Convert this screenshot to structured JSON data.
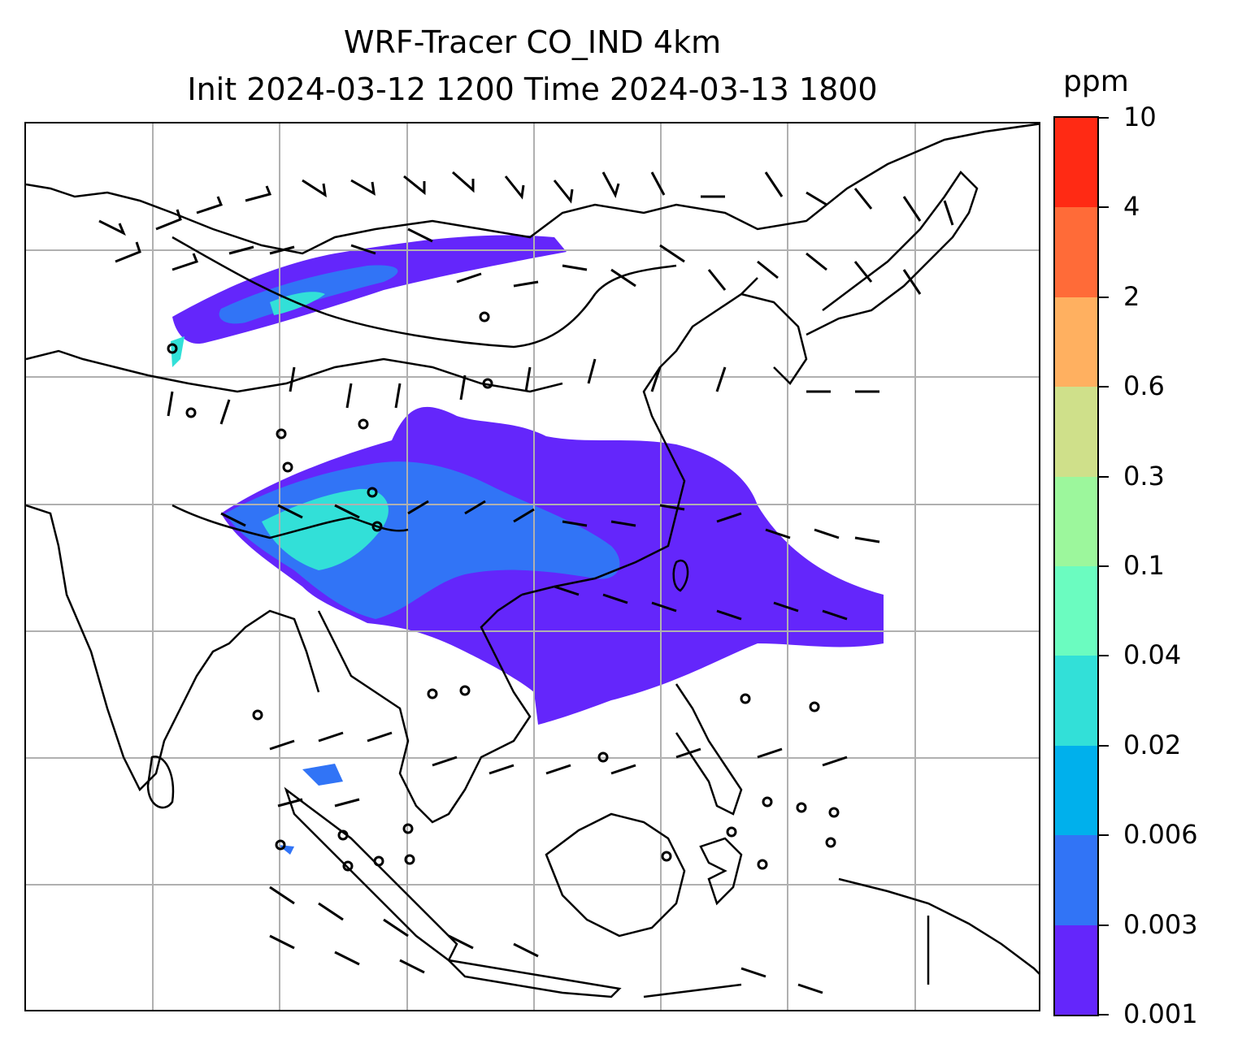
{
  "title": {
    "line1": "WRF-Tracer CO_IND 4km",
    "line2": "Init 2024-03-12 1200 Time 2024-03-13 1800"
  },
  "colorbar": {
    "unit": "ppm",
    "labels": [
      "10",
      "4",
      "2",
      "0.6",
      "0.3",
      "0.1",
      "0.04",
      "0.02",
      "0.006",
      "0.003",
      "0.001"
    ],
    "colors": [
      "#ff2a14",
      "#ff6b38",
      "#ffb060",
      "#cfe08a",
      "#9cf79c",
      "#6bfcc0",
      "#32e0d8",
      "#00b0ec",
      "#3174f6",
      "#6426fb"
    ]
  },
  "map": {
    "features": [
      "coastlines",
      "country-borders",
      "gridlines",
      "wind-barbs",
      "tracer-plume"
    ],
    "gridline_color": "#b0b0b0"
  }
}
